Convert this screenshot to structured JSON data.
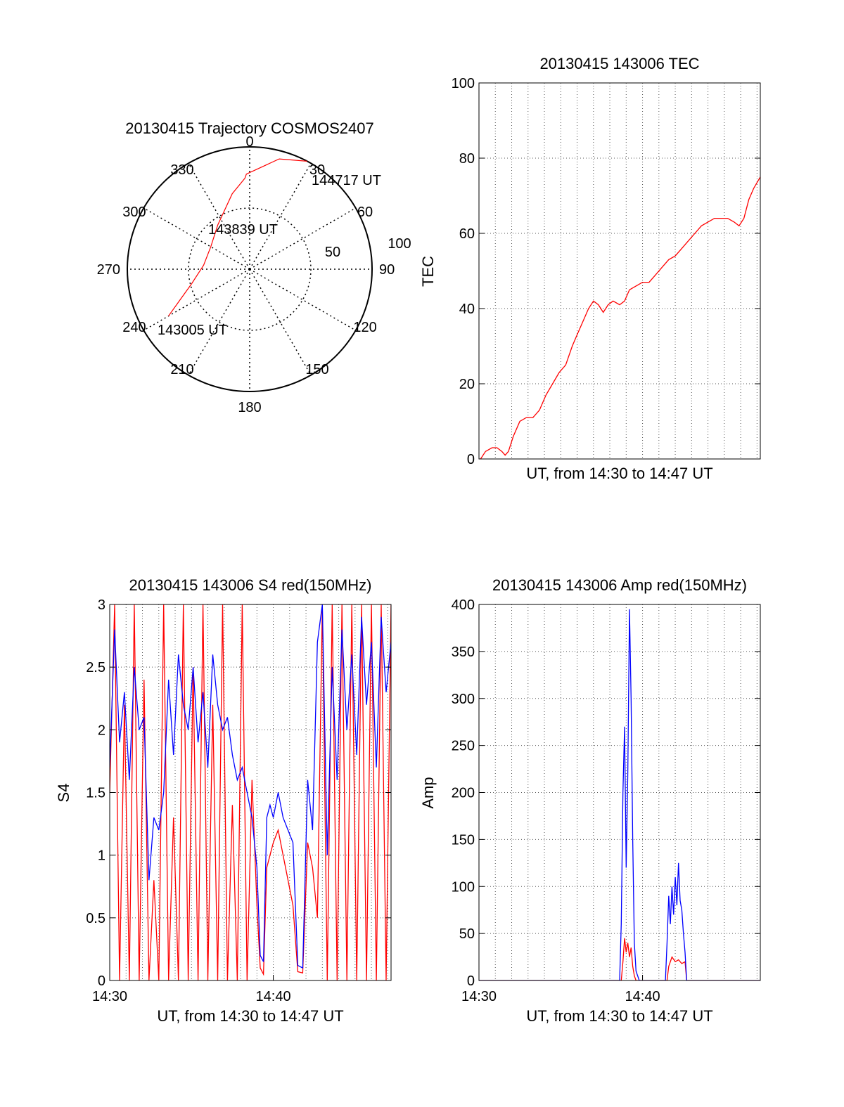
{
  "chart_data": [
    {
      "type": "polar",
      "title": "20130415 Trajectory COSMOS2407",
      "angle_labels": [
        "0",
        "30",
        "60",
        "90",
        "120",
        "150",
        "180",
        "210",
        "240",
        "270",
        "300",
        "330"
      ],
      "radial_labels": [
        "50",
        "100"
      ],
      "trajectory": {
        "color": "#ff0000",
        "points_az_el": [
          [
            240,
            21
          ],
          [
            256,
            46
          ],
          [
            275,
            56
          ],
          [
            300,
            57
          ],
          [
            324,
            50
          ],
          [
            347,
            33
          ],
          [
            357,
            23
          ],
          [
            358,
            20
          ],
          [
            15,
            6
          ],
          [
            28,
            0
          ]
        ]
      },
      "annotations": [
        "143005 UT",
        "143839 UT",
        "144717 UT"
      ]
    },
    {
      "type": "line",
      "title": "20130415 143006 TEC",
      "xlabel": "UT, from 14:30 to 14:47 UT",
      "ylabel": "TEC",
      "xlim": [
        0,
        17.2
      ],
      "ylim": [
        0,
        100
      ],
      "yticks": [
        "0",
        "20",
        "40",
        "60",
        "80",
        "100"
      ],
      "xticks": [],
      "grid": true,
      "series": [
        {
          "color": "#ff0000",
          "x": [
            0,
            0.4,
            1,
            1.4,
            1.8,
            2.2,
            2.6,
            3.4,
            3.9,
            4.3,
            5.2,
            5.8,
            6.2,
            6.8,
            7.3,
            7.6,
            8.4,
            9.1,
            9.7,
            10.3,
            10.9,
            11.5,
            12.1,
            12.7,
            13.2,
            13.6,
            14,
            14.5,
            15,
            15.5,
            15.8,
            16.2,
            16.6,
            17,
            17.2
          ],
          "y": [
            0,
            2,
            3,
            3,
            1,
            6,
            10,
            11,
            14,
            18,
            23,
            30,
            35,
            41,
            42,
            39,
            42,
            41,
            46,
            47,
            49,
            53,
            55,
            57,
            60,
            62,
            63,
            64,
            65,
            64,
            63,
            62,
            65,
            70,
            74
          ]
        }
      ]
    },
    {
      "type": "line",
      "title": "20130415 143006 S4 red(150MHz)",
      "xlabel": "UT, from 14:30 to 14:47 UT",
      "ylabel": "S4",
      "xlim": [
        0,
        17.2
      ],
      "ylim": [
        0,
        3
      ],
      "yticks": [
        "0",
        "0.5",
        "1",
        "1.5",
        "2",
        "2.5",
        "3"
      ],
      "xticks": [
        {
          "value": 0,
          "label": "14:30"
        },
        {
          "value": 10,
          "label": "14:40"
        }
      ],
      "grid": true,
      "series": [
        {
          "color": "#ff0000",
          "x": [
            0,
            0.3,
            0.6,
            0.9,
            1.2,
            1.5,
            1.8,
            2.1,
            2.4,
            2.7,
            3,
            3.3,
            3.6,
            3.9,
            4.2,
            4.5,
            4.8,
            5.1,
            5.4,
            5.7,
            6,
            6.3,
            6.6,
            6.9,
            7.2,
            7.5,
            7.8,
            8.1,
            8.4,
            8.7,
            9,
            9.2,
            9.4,
            9.6,
            9.8,
            10,
            10.3,
            10.6,
            10.9,
            11.2,
            11.5,
            11.8,
            12.1,
            12.4,
            12.7,
            13,
            13.3,
            13.6,
            13.9,
            14.2,
            14.5,
            14.8,
            15.1,
            15.4,
            15.7,
            16,
            16.3,
            16.6,
            16.9,
            17.2
          ],
          "y": [
            1.5,
            3,
            0,
            2.2,
            0,
            3,
            0,
            2.4,
            0,
            0.8,
            0,
            3,
            0,
            1.3,
            0,
            3,
            0,
            2.5,
            0,
            3,
            0,
            2.2,
            0,
            3,
            0,
            1.4,
            0,
            3,
            0,
            1.6,
            0.6,
            0.1,
            0.05,
            0.9,
            1.0,
            1.1,
            1.2,
            1.0,
            0.8,
            0.6,
            0.07,
            0.06,
            1.1,
            0.9,
            0.5,
            3,
            0,
            3,
            0,
            3,
            0,
            3,
            0,
            3,
            0,
            3,
            0,
            3,
            0,
            3
          ]
        },
        {
          "color": "#0000ff",
          "x": [
            0,
            0.3,
            0.6,
            0.9,
            1.2,
            1.5,
            1.8,
            2.1,
            2.4,
            2.7,
            3,
            3.3,
            3.6,
            3.9,
            4.2,
            4.5,
            4.8,
            5.1,
            5.4,
            5.7,
            6,
            6.3,
            6.6,
            6.9,
            7.2,
            7.5,
            7.8,
            8.1,
            8.4,
            8.7,
            9,
            9.2,
            9.4,
            9.6,
            9.8,
            10,
            10.3,
            10.6,
            10.9,
            11.2,
            11.5,
            11.8,
            12.1,
            12.4,
            12.7,
            13,
            13.3,
            13.6,
            13.9,
            14.2,
            14.5,
            14.8,
            15.1,
            15.4,
            15.7,
            16,
            16.3,
            16.6,
            16.9,
            17.2
          ],
          "y": [
            1.7,
            2.8,
            1.9,
            2.3,
            1.6,
            2.5,
            2.0,
            2.1,
            0.8,
            1.3,
            1.2,
            1.5,
            2.4,
            1.8,
            2.6,
            2.2,
            2.0,
            2.5,
            1.9,
            2.3,
            1.7,
            2.6,
            2.2,
            2.0,
            2.1,
            1.8,
            1.6,
            1.7,
            1.5,
            1.3,
            0.9,
            0.2,
            0.15,
            1.3,
            1.4,
            1.3,
            1.5,
            1.3,
            1.2,
            1.1,
            0.12,
            0.1,
            1.6,
            1.2,
            2.7,
            3,
            1.0,
            2.5,
            1.6,
            2.8,
            2.0,
            2.6,
            1.8,
            2.9,
            2.2,
            2.7,
            1.7,
            2.9,
            2.3,
            2.7
          ]
        }
      ]
    },
    {
      "type": "line",
      "title": "20130415 143006 Amp red(150MHz)",
      "xlabel": "UT, from 14:30 to 14:47 UT",
      "ylabel": "Amp",
      "xlim": [
        0,
        17.2
      ],
      "ylim": [
        0,
        400
      ],
      "yticks": [
        "0",
        "50",
        "100",
        "150",
        "200",
        "250",
        "300",
        "350",
        "400"
      ],
      "xticks": [
        {
          "value": 0,
          "label": "14:30"
        },
        {
          "value": 10,
          "label": "14:40"
        }
      ],
      "grid": true,
      "series": [
        {
          "color": "#ff0000",
          "x": [
            0,
            8.7,
            8.8,
            8.9,
            9.0,
            9.1,
            9.2,
            9.3,
            9.4,
            9.5,
            9.6,
            11.5,
            11.6,
            11.8,
            12.0,
            12.2,
            12.4,
            12.6,
            12.7,
            17.2
          ],
          "y": [
            0,
            0,
            20,
            45,
            30,
            40,
            25,
            35,
            15,
            5,
            0,
            0,
            15,
            25,
            20,
            22,
            18,
            20,
            0,
            0
          ]
        },
        {
          "color": "#0000ff",
          "x": [
            0,
            8.6,
            8.7,
            8.8,
            8.9,
            9.0,
            9.1,
            9.2,
            9.3,
            9.4,
            9.5,
            9.6,
            9.8,
            11.4,
            11.5,
            11.6,
            11.7,
            11.8,
            11.9,
            12.0,
            12.1,
            12.2,
            12.3,
            12.4,
            12.5,
            12.6,
            12.7,
            17.2
          ],
          "y": [
            0,
            0,
            60,
            200,
            270,
            120,
            220,
            395,
            300,
            150,
            40,
            10,
            0,
            0,
            40,
            90,
            60,
            100,
            70,
            110,
            80,
            125,
            85,
            75,
            50,
            30,
            0,
            0
          ]
        }
      ]
    }
  ],
  "tec_points": [
    [
      0.1,
      0
    ],
    [
      0.4,
      2
    ],
    [
      0.8,
      3
    ],
    [
      1.1,
      3
    ],
    [
      1.4,
      2
    ],
    [
      1.6,
      1
    ],
    [
      1.8,
      2
    ],
    [
      2.1,
      6
    ],
    [
      2.5,
      10
    ],
    [
      2.9,
      11
    ],
    [
      3.3,
      11
    ],
    [
      3.7,
      13
    ],
    [
      4.1,
      17
    ],
    [
      4.5,
      20
    ],
    [
      4.9,
      23
    ],
    [
      5.3,
      25
    ],
    [
      5.7,
      30
    ],
    [
      6.0,
      33
    ],
    [
      6.3,
      36
    ],
    [
      6.7,
      40
    ],
    [
      7.0,
      42
    ],
    [
      7.3,
      41
    ],
    [
      7.6,
      39
    ],
    [
      7.9,
      41
    ],
    [
      8.2,
      42
    ],
    [
      8.6,
      41
    ],
    [
      8.9,
      42
    ],
    [
      9.2,
      45
    ],
    [
      9.6,
      46
    ],
    [
      10.0,
      47
    ],
    [
      10.4,
      47
    ],
    [
      10.8,
      49
    ],
    [
      11.2,
      51
    ],
    [
      11.6,
      53
    ],
    [
      12.0,
      54
    ],
    [
      12.4,
      56
    ],
    [
      12.8,
      58
    ],
    [
      13.2,
      60
    ],
    [
      13.6,
      62
    ],
    [
      14.0,
      63
    ],
    [
      14.4,
      64
    ],
    [
      14.8,
      64
    ],
    [
      15.2,
      64
    ],
    [
      15.6,
      63
    ],
    [
      15.9,
      62
    ],
    [
      16.2,
      64
    ],
    [
      16.5,
      69
    ],
    [
      16.8,
      72
    ],
    [
      17.2,
      75
    ]
  ]
}
